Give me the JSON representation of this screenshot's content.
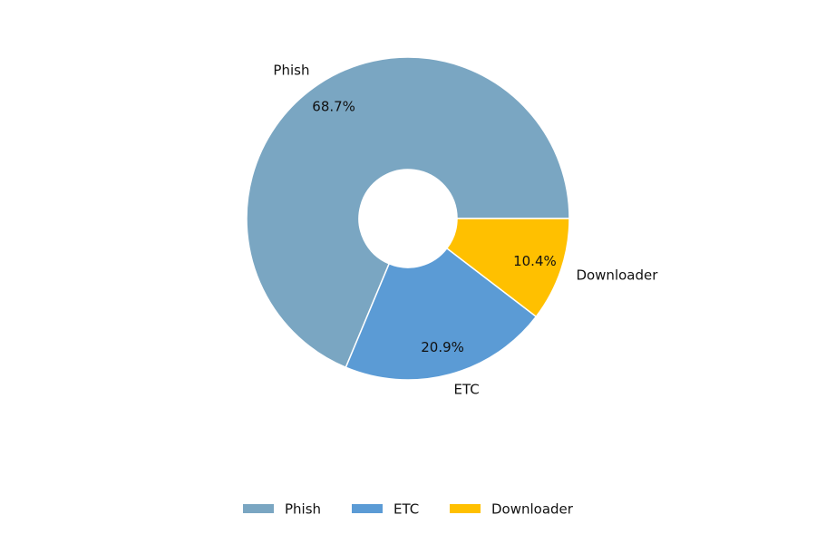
{
  "chart_data": {
    "type": "donut",
    "categories": [
      "Phish",
      "ETC",
      "Downloader"
    ],
    "values": [
      68.7,
      20.9,
      10.4
    ],
    "value_labels": [
      "68.7%",
      "20.9%",
      "10.4%"
    ],
    "colors": [
      "#7aa6c2",
      "#5b9bd5",
      "#ffc000"
    ],
    "legend": "bottom"
  }
}
